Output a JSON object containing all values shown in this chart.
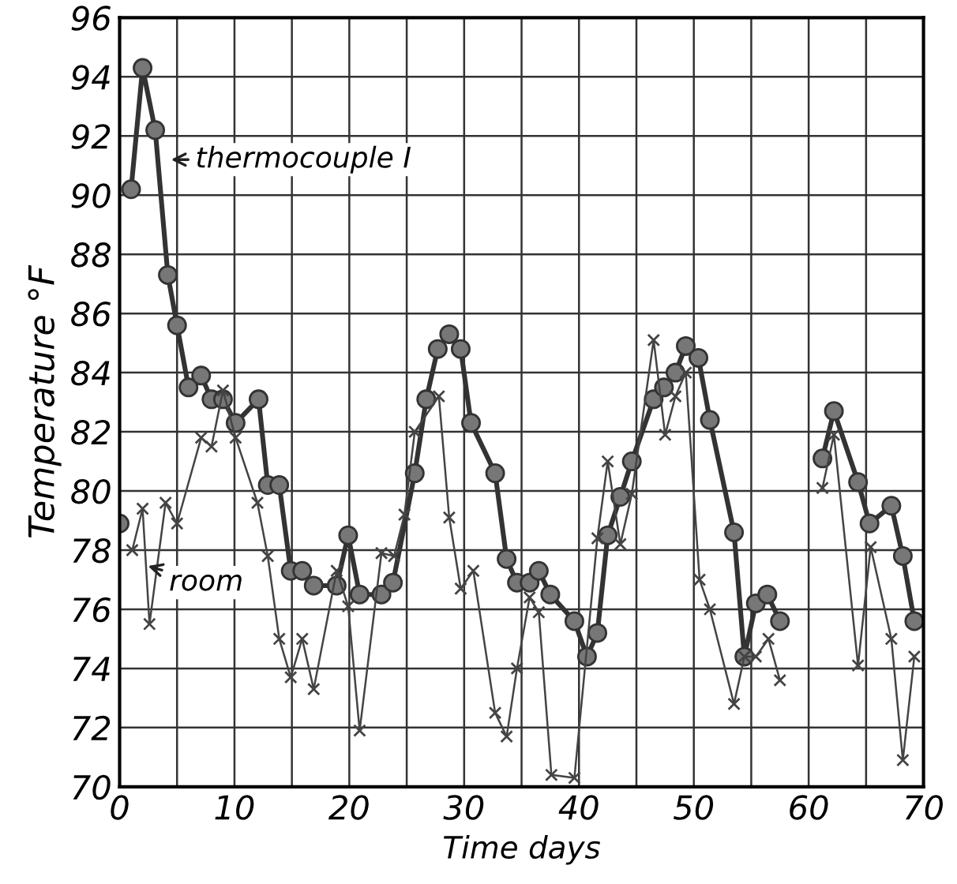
{
  "chart_data": {
    "type": "line",
    "xlabel": "Time days",
    "ylabel": "Temperature °F",
    "xlim": [
      0,
      70
    ],
    "ylim": [
      70,
      96
    ],
    "xticks": [
      0,
      {
        "value": 5,
        "label": null
      },
      10,
      {
        "value": 15,
        "label": null
      },
      20,
      {
        "value": 25,
        "label": null
      },
      30,
      {
        "value": 35,
        "label": null
      },
      40,
      {
        "value": 45,
        "label": null
      },
      50,
      {
        "value": 55,
        "label": null
      },
      60,
      {
        "value": 65,
        "label": null
      },
      70
    ],
    "yticks": [
      70,
      72,
      74,
      76,
      78,
      80,
      82,
      84,
      86,
      88,
      90,
      92,
      94,
      96
    ],
    "grid": true,
    "legend": false,
    "series": [
      {
        "color": "#333333",
        "marker": "circle",
        "x": [
          0,
          0.5,
          1,
          2,
          3.1,
          4.2,
          5,
          6,
          7.1,
          8,
          9,
          10.1,
          12.1,
          12.9,
          13.9,
          14.9,
          15.9,
          16.9,
          18.9,
          19.9,
          20.9,
          22.8,
          23.8,
          25.7,
          26.7,
          27.7,
          28.7,
          29.7,
          30.6,
          32.7,
          33.7,
          34.6,
          35.7,
          36.5,
          37.5,
          39.6,
          40.7,
          41.6,
          42.5,
          43.6,
          44.6,
          46.5,
          47.4,
          48.4,
          49.3,
          50.4,
          51.4,
          53.5,
          54.4,
          55.4,
          56.4,
          57.5,
          59,
          61.2,
          62.2,
          64.3,
          65.3,
          67.2,
          68.2,
          69.2
        ],
        "values": [
          78.9,
          null,
          90.2,
          94.3,
          92.2,
          87.3,
          85.6,
          83.5,
          83.9,
          83.1,
          83.1,
          82.3,
          83.1,
          80.2,
          80.2,
          77.3,
          77.3,
          76.8,
          76.8,
          78.5,
          76.5,
          76.5,
          76.9,
          80.6,
          83.1,
          84.8,
          85.3,
          84.8,
          82.3,
          80.6,
          77.7,
          76.9,
          76.9,
          77.3,
          76.5,
          75.6,
          74.4,
          75.2,
          78.5,
          79.8,
          81.0,
          83.1,
          83.5,
          84.0,
          84.9,
          84.5,
          82.4,
          78.6,
          74.4,
          76.2,
          76.5,
          75.6,
          null,
          81.1,
          82.7,
          80.3,
          78.9,
          79.5,
          77.8,
          75.6
        ]
      },
      {
        "color": "#444444",
        "marker": "cross",
        "x": [
          1.1,
          2,
          2.6,
          4,
          5,
          7.1,
          8,
          9,
          10.1,
          12,
          12.9,
          13.9,
          14.9,
          15.9,
          16.9,
          18.9,
          19.9,
          20.9,
          22.8,
          23.9,
          24.8,
          25.7,
          27.8,
          28.7,
          29.7,
          30.8,
          32.7,
          33.7,
          34.6,
          35.7,
          36.5,
          37.6,
          39.6,
          41.6,
          42.5,
          43.6,
          44.6,
          46.5,
          47.5,
          48.4,
          49.3,
          50.5,
          51.4,
          53.5,
          54.4,
          55.4,
          56.5,
          57.5,
          59,
          61.2,
          62.2,
          64.3,
          65.4,
          67.2,
          68.2,
          69.2
        ],
        "values": [
          78.0,
          79.4,
          75.5,
          79.6,
          78.9,
          81.8,
          81.5,
          83.4,
          81.8,
          79.6,
          77.8,
          75.0,
          73.7,
          75.0,
          73.3,
          77.3,
          76.1,
          71.9,
          77.9,
          77.8,
          79.2,
          82.0,
          83.2,
          79.1,
          76.7,
          77.3,
          72.5,
          71.7,
          74.0,
          76.4,
          75.9,
          70.4,
          70.3,
          78.4,
          81.0,
          78.2,
          79.9,
          85.1,
          81.9,
          83.2,
          84.0,
          77.0,
          76.0,
          72.8,
          74.4,
          74.4,
          75.0,
          73.6,
          null,
          80.1,
          81.9,
          74.1,
          78.1,
          75.0,
          70.9,
          74.4
        ]
      }
    ],
    "annotations": [
      {
        "text": "thermocouple I",
        "x": 4.1,
        "y": 91.2
      },
      {
        "text": "room",
        "x": 2.1,
        "y": 77.5
      }
    ]
  }
}
